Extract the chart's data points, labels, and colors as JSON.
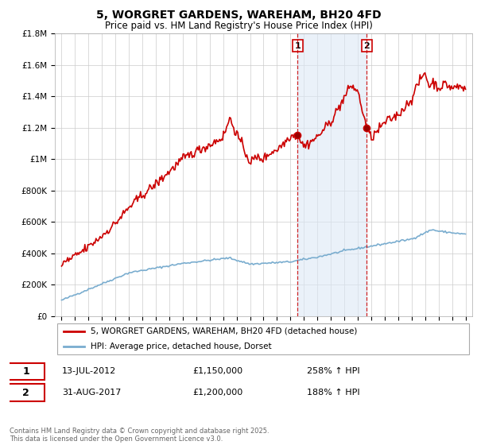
{
  "title": "5, WORGRET GARDENS, WAREHAM, BH20 4FD",
  "subtitle": "Price paid vs. HM Land Registry's House Price Index (HPI)",
  "title_fontsize": 10,
  "subtitle_fontsize": 8.5,
  "red_color": "#cc0000",
  "blue_color": "#7aadcf",
  "grid_color": "#cccccc",
  "background_color": "#ffffff",
  "ylim": [
    0,
    1800000
  ],
  "xlim_start": 1994.5,
  "xlim_end": 2025.5,
  "sale1_year": 2012.53,
  "sale1_price": 1150000,
  "sale1_label": "1",
  "sale1_date": "13-JUL-2012",
  "sale1_display": "£1,150,000",
  "sale1_hpi": "258% ↑ HPI",
  "sale2_year": 2017.66,
  "sale2_price": 1200000,
  "sale2_label": "2",
  "sale2_date": "31-AUG-2017",
  "sale2_display": "£1,200,000",
  "sale2_hpi": "188% ↑ HPI",
  "legend_line1": "5, WORGRET GARDENS, WAREHAM, BH20 4FD (detached house)",
  "legend_line2": "HPI: Average price, detached house, Dorset",
  "footer": "Contains HM Land Registry data © Crown copyright and database right 2025.\nThis data is licensed under the Open Government Licence v3.0.",
  "yticks": [
    0,
    200000,
    400000,
    600000,
    800000,
    1000000,
    1200000,
    1400000,
    1600000,
    1800000
  ],
  "ytick_labels": [
    "£0",
    "£200K",
    "£400K",
    "£600K",
    "£800K",
    "£1M",
    "£1.2M",
    "£1.4M",
    "£1.6M",
    "£1.8M"
  ],
  "xtick_years": [
    1995,
    1996,
    1997,
    1998,
    1999,
    2000,
    2001,
    2002,
    2003,
    2004,
    2005,
    2006,
    2007,
    2008,
    2009,
    2010,
    2011,
    2012,
    2013,
    2014,
    2015,
    2016,
    2017,
    2018,
    2019,
    2020,
    2021,
    2022,
    2023,
    2024,
    2025
  ],
  "span_color": "#dce8f5",
  "span_alpha": 0.6
}
